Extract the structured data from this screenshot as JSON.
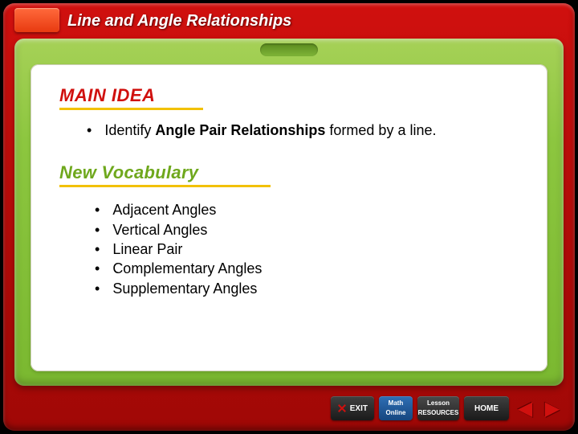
{
  "header": {
    "title": "Line and Angle Relationships"
  },
  "main_idea": {
    "heading": "MAIN IDEA",
    "bullet_prefix": "Identify ",
    "bullet_bold": "Angle Pair Relationships",
    "bullet_suffix": " formed by a line."
  },
  "vocab": {
    "heading": "New Vocabulary",
    "items": [
      "Adjacent Angles",
      "Vertical Angles",
      "Linear Pair",
      "Complementary Angles",
      "Supplementary Angles"
    ]
  },
  "nav": {
    "exit": "EXIT",
    "math1": "Math",
    "math2": "Online",
    "lesson1": "Lesson",
    "lesson2": "RESOURCES",
    "home": "HOME"
  },
  "colors": {
    "red": "#d0100e",
    "green": "#8cc63f",
    "yellow": "#f2c100",
    "vocab_green": "#6fa81d"
  }
}
